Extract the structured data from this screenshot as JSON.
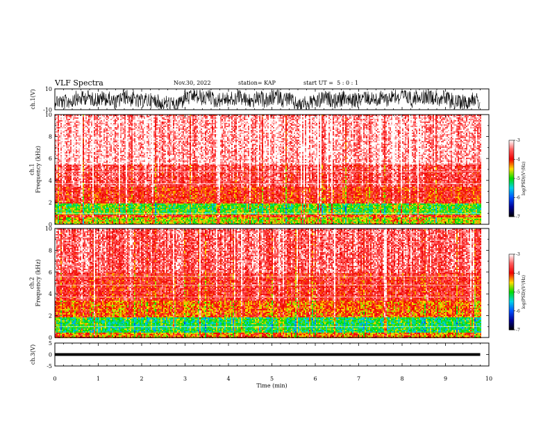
{
  "header": {
    "title": "VLF Spectra",
    "date": "Nov.30, 2022",
    "station": "station= KAP",
    "start": "start UT =  5 : 0 : 1"
  },
  "chart_data": [
    {
      "type": "line",
      "name": "ch1-waveform",
      "ylabel": "ch.1(V)",
      "ylim": [
        -10,
        10
      ],
      "y_ticks": [
        "10",
        "-10"
      ],
      "xlim": [
        0,
        10
      ]
    },
    {
      "type": "heatmap",
      "name": "ch1-spectrogram",
      "ylabel": "ch.1\nFrequency (kHz)",
      "ylim": [
        0,
        10
      ],
      "y_ticks": [
        "0",
        "2",
        "4",
        "6",
        "8",
        "10"
      ],
      "xlim": [
        0,
        10
      ],
      "data_extent_x": 9.8,
      "colorbar": {
        "label": "log(PSD)(V²/Hz)",
        "range": [
          -7,
          -3
        ],
        "ticks": [
          "-3",
          "-4",
          "-5",
          "-6",
          "-7"
        ]
      },
      "bands": [
        {
          "from": 0.0,
          "to": 0.7,
          "level": -4.6
        },
        {
          "from": 0.7,
          "to": 1.0,
          "level": -4.0
        },
        {
          "from": 1.0,
          "to": 2.0,
          "level": -4.9
        },
        {
          "from": 2.0,
          "to": 3.5,
          "level": -3.9
        },
        {
          "from": 3.5,
          "to": 5.5,
          "level": -3.6
        },
        {
          "from": 5.5,
          "to": 10.0,
          "level": -3.2
        }
      ]
    },
    {
      "type": "heatmap",
      "name": "ch2-spectrogram",
      "ylabel": "ch.2\nFrequency (kHz)",
      "ylim": [
        0,
        10
      ],
      "y_ticks": [
        "0",
        "2",
        "4",
        "6",
        "8",
        "10"
      ],
      "xlim": [
        0,
        10
      ],
      "data_extent_x": 9.8,
      "colorbar": {
        "label": "log(PSD)(V²/Hz)",
        "range": [
          -7,
          -3
        ],
        "ticks": [
          "-3",
          "-4",
          "-5",
          "-6",
          "-7"
        ]
      },
      "bands": [
        {
          "from": 0.0,
          "to": 0.5,
          "level": -4.3
        },
        {
          "from": 0.5,
          "to": 1.9,
          "level": -5.1
        },
        {
          "from": 1.9,
          "to": 3.5,
          "level": -4.2
        },
        {
          "from": 3.5,
          "to": 6.0,
          "level": -3.8
        },
        {
          "from": 6.0,
          "to": 10.0,
          "level": -3.5
        }
      ]
    },
    {
      "type": "line",
      "name": "ch3-waveform",
      "ylabel": "ch.3(V)",
      "ylim": [
        -5,
        5
      ],
      "y_ticks": [
        "5",
        "0",
        "-5"
      ],
      "xlim": [
        0,
        10
      ],
      "level": [
        -0.6,
        0.6
      ],
      "xlabel": "Time (min)",
      "x_ticks": [
        "0",
        "1",
        "2",
        "3",
        "4",
        "5",
        "6",
        "7",
        "8",
        "9",
        "10"
      ]
    }
  ]
}
